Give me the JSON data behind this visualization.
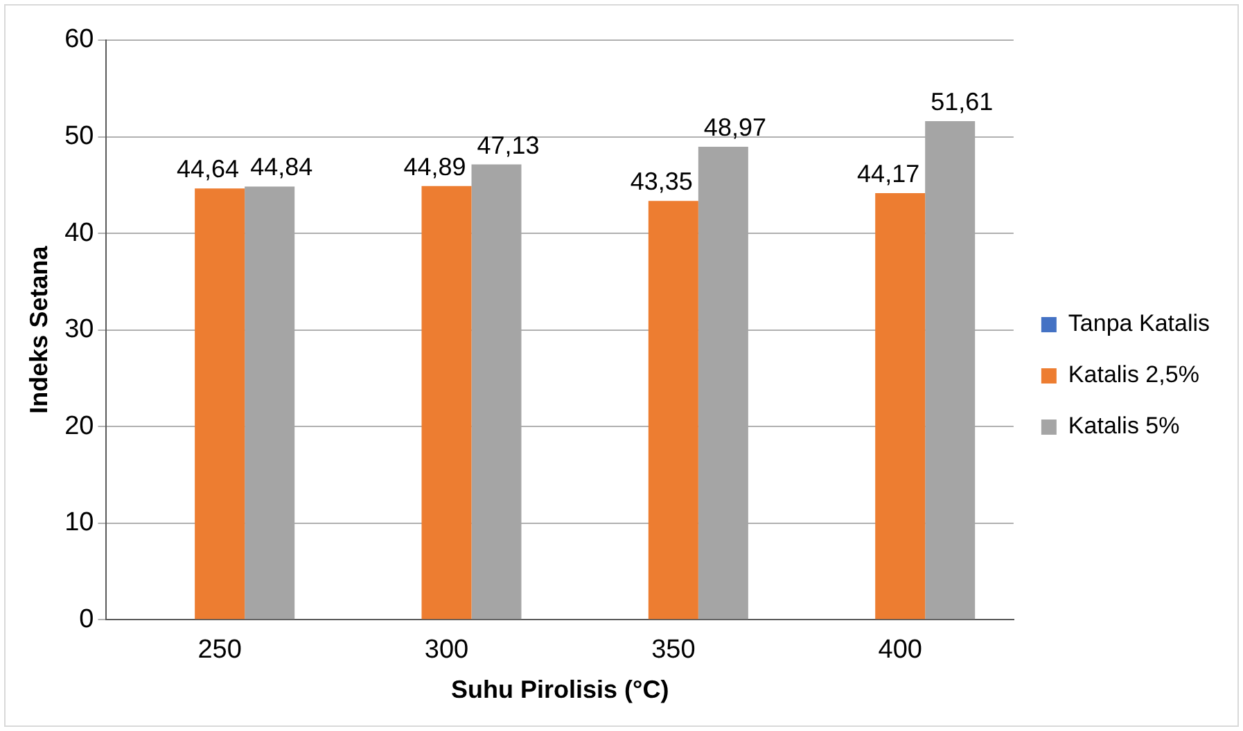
{
  "chart_data": {
    "type": "bar",
    "xlabel": "Suhu Pirolisis (°C)",
    "ylabel": "Indeks Setana",
    "categories": [
      "250",
      "300",
      "350",
      "400"
    ],
    "series": [
      {
        "name": "Tanpa Katalis",
        "color": "#4472c4",
        "values": [
          null,
          null,
          null,
          null
        ]
      },
      {
        "name": "Katalis 2,5%",
        "color": "#ed7d31",
        "values": [
          44.64,
          44.89,
          43.35,
          44.17
        ],
        "value_labels": [
          "44,64",
          "44,89",
          "43,35",
          "44,17"
        ]
      },
      {
        "name": "Katalis 5%",
        "color": "#a5a5a5",
        "values": [
          44.84,
          47.13,
          48.97,
          51.61
        ],
        "value_labels": [
          "44,84",
          "47,13",
          "48,97",
          "51,61"
        ]
      }
    ],
    "ylim": [
      0,
      60
    ],
    "yticks": [
      0,
      10,
      20,
      30,
      40,
      50,
      60
    ],
    "grid": "y",
    "legend": "right"
  }
}
